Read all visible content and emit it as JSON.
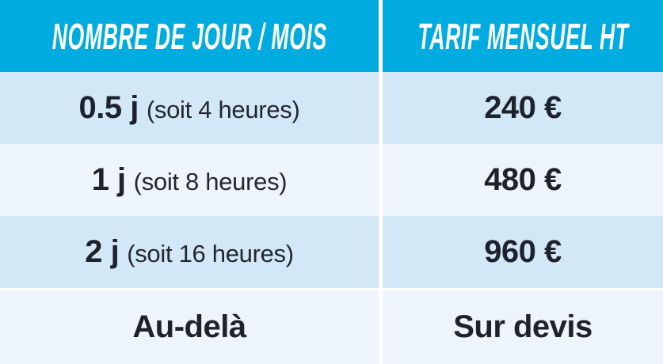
{
  "table": {
    "header": {
      "col1": "NOMBRE DE JOUR / MOIS",
      "col2": "TARIF MENSUEL HT"
    },
    "rows": [
      {
        "days": "0.5 j",
        "note": "(soit 4 heures)",
        "price": "240 €"
      },
      {
        "days": "1 j",
        "note": "(soit 8 heures)",
        "price": "480 €"
      },
      {
        "days": "2 j",
        "note": "(soit 16 heures)",
        "price": "960 €"
      },
      {
        "days": "Au-delà",
        "note": "",
        "price": "Sur devis"
      }
    ],
    "colors": {
      "header_bg": "#00abe0",
      "header_text": "#ffffff",
      "row_shade_dark": "#d3e8f6",
      "row_shade_light": "#eef4fb",
      "body_text": "#1e222d",
      "separator": "#ffffff"
    }
  },
  "chart_data": {
    "type": "table",
    "columns": [
      "NOMBRE DE JOUR / MOIS",
      "TARIF MENSUEL HT"
    ],
    "rows": [
      [
        "0.5 j (soit 4 heures)",
        "240 €"
      ],
      [
        "1 j (soit 8 heures)",
        "480 €"
      ],
      [
        "2 j (soit 16 heures)",
        "960 €"
      ],
      [
        "Au-delà",
        "Sur devis"
      ]
    ],
    "title": "",
    "legend_position": "none",
    "grid": false
  }
}
